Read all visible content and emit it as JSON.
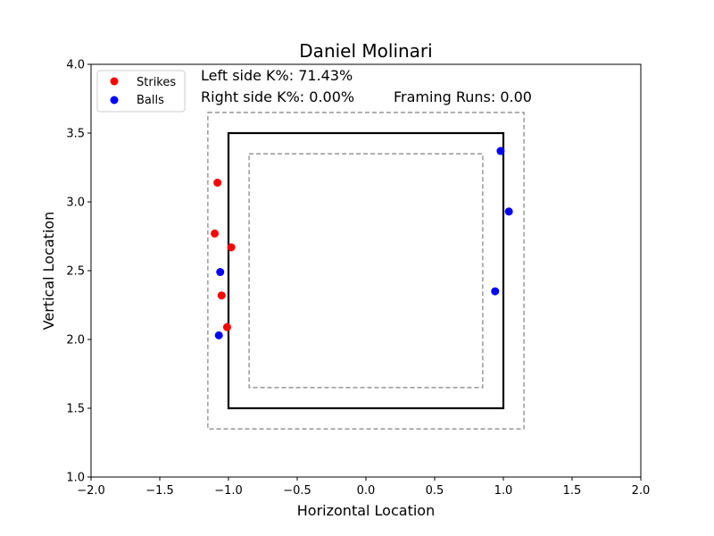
{
  "chart_data": {
    "type": "scatter",
    "title": "Daniel Molinari",
    "xlabel": "Horizontal Location",
    "ylabel": "Vertical Location",
    "xlim": [
      -2.0,
      2.0
    ],
    "ylim": [
      1.0,
      4.0
    ],
    "xticks": [
      -2.0,
      -1.5,
      -1.0,
      -0.5,
      0.0,
      0.5,
      1.0,
      1.5,
      2.0
    ],
    "xtick_labels": [
      "−2.0",
      "−1.5",
      "−1.0",
      "−0.5",
      "0.0",
      "0.5",
      "1.0",
      "1.5",
      "2.0"
    ],
    "yticks": [
      1.0,
      1.5,
      2.0,
      2.5,
      3.0,
      3.5,
      4.0
    ],
    "ytick_labels": [
      "1.0",
      "1.5",
      "2.0",
      "2.5",
      "3.0",
      "3.5",
      "4.0"
    ],
    "grid": false,
    "legend_position": "top-left",
    "series": [
      {
        "name": "Strikes",
        "color": "#ff0000",
        "points": [
          {
            "x": -1.08,
            "y": 3.14
          },
          {
            "x": -1.1,
            "y": 2.77
          },
          {
            "x": -0.98,
            "y": 2.67
          },
          {
            "x": -1.05,
            "y": 2.32
          },
          {
            "x": -1.01,
            "y": 2.09
          }
        ]
      },
      {
        "name": "Balls",
        "color": "#0000ff",
        "points": [
          {
            "x": 0.98,
            "y": 3.37
          },
          {
            "x": 1.04,
            "y": 2.93
          },
          {
            "x": 0.94,
            "y": 2.35
          },
          {
            "x": -1.06,
            "y": 2.49
          },
          {
            "x": -1.07,
            "y": 2.03
          }
        ]
      }
    ],
    "zones": [
      {
        "name": "strike-zone",
        "x0": -1.0,
        "x1": 1.0,
        "y0": 1.5,
        "y1": 3.5,
        "style": "solid"
      },
      {
        "name": "outer-shadow-zone",
        "x0": -1.15,
        "x1": 1.15,
        "y0": 1.35,
        "y1": 3.65,
        "style": "dashed"
      },
      {
        "name": "inner-shadow-zone",
        "x0": -0.85,
        "x1": 0.85,
        "y0": 1.65,
        "y1": 3.35,
        "style": "dashed"
      }
    ],
    "annotations": {
      "left_k": "Left side K%: 71.43%",
      "right_k": "Right side K%: 0.00%",
      "framing": "Framing Runs: 0.00"
    }
  }
}
